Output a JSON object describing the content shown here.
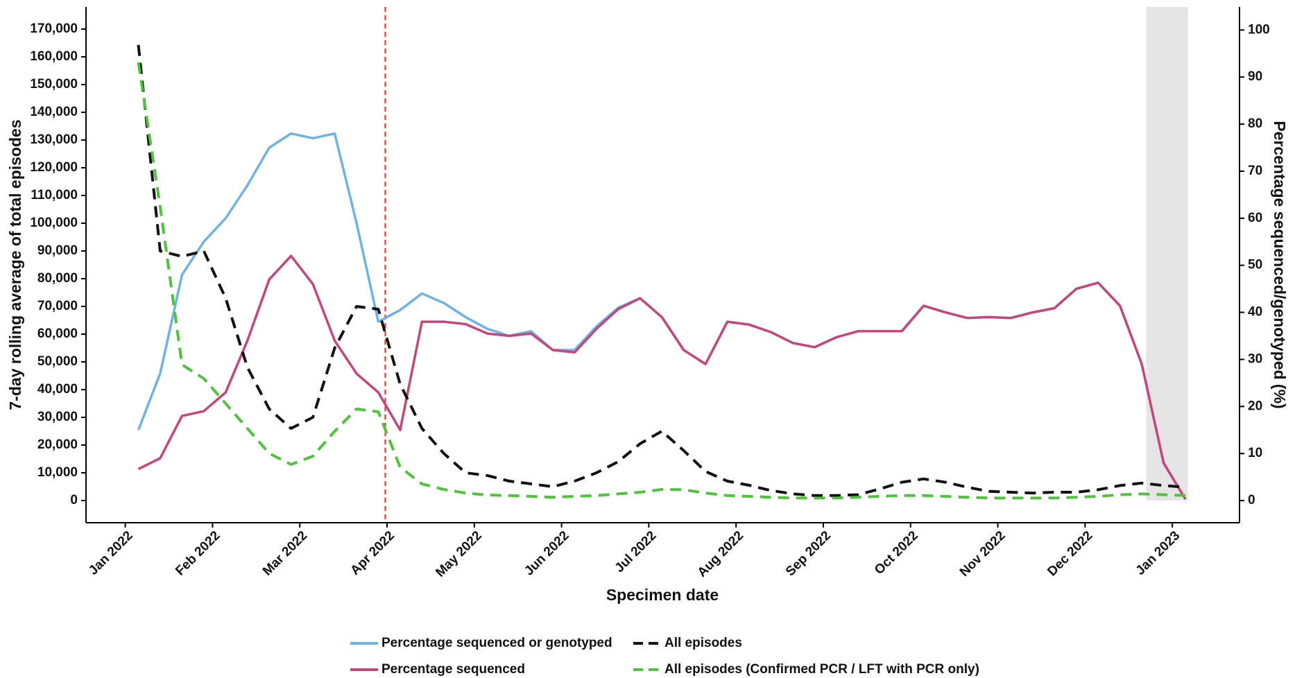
{
  "chart_data": {
    "type": "line",
    "x_label": "Specimen date",
    "y_label": "7-day rolling average of total episodes",
    "y2_label": "Percentage sequenced/genotyped (%)",
    "x": [
      0.15,
      0.4,
      0.65,
      0.9,
      1.15,
      1.4,
      1.65,
      1.9,
      2.15,
      2.4,
      2.65,
      2.9,
      3.15,
      3.4,
      3.65,
      3.9,
      4.15,
      4.4,
      4.65,
      4.9,
      5.15,
      5.4,
      5.65,
      5.9,
      6.15,
      6.4,
      6.65,
      6.9,
      7.15,
      7.4,
      7.65,
      7.9,
      8.15,
      8.4,
      8.65,
      8.9,
      9.15,
      9.4,
      9.65,
      9.9,
      10.15,
      10.4,
      10.65,
      10.9,
      11.15,
      11.4,
      11.65,
      11.9,
      12.15
    ],
    "series": [
      {
        "name": "Percentage sequenced or genotyped",
        "color": "#6cb4e4",
        "dashed": false,
        "axis": "y2",
        "values": [
          15,
          27,
          48,
          55,
          60,
          67,
          75,
          78,
          77,
          78,
          59,
          38,
          40.5,
          44,
          42,
          39,
          36.5,
          35,
          36,
          32,
          32,
          37,
          41,
          43,
          39,
          32,
          29,
          38,
          37.4,
          35.8,
          33.5,
          32.6,
          34.7,
          36,
          36,
          36,
          41.4,
          40,
          38.8,
          39,
          38.8,
          40,
          40.9,
          45,
          46.3,
          41.4,
          29,
          8,
          0.3
        ]
      },
      {
        "name": "Percentage sequenced",
        "color": "#c8457a",
        "dashed": false,
        "axis": "y2",
        "values": [
          6.7,
          9,
          18,
          19,
          23,
          34,
          47,
          52,
          46,
          34,
          27,
          23,
          15,
          38,
          38,
          37.5,
          35.5,
          35,
          35.5,
          32,
          31.5,
          36.5,
          40.7,
          43,
          39,
          32,
          29,
          38,
          37.4,
          35.8,
          33.5,
          32.6,
          34.7,
          36,
          36,
          36,
          41.4,
          40,
          38.8,
          39,
          38.8,
          40,
          40.9,
          45,
          46.3,
          41.4,
          29,
          8,
          0.3
        ]
      },
      {
        "name": "All episodes",
        "color": "#111111",
        "dashed": true,
        "axis": "y",
        "values": [
          164300,
          90000,
          88000,
          90000,
          73000,
          48000,
          33000,
          26000,
          30000,
          55000,
          70000,
          69000,
          42000,
          26000,
          17000,
          10000,
          9000,
          7000,
          6000,
          5000,
          7000,
          10000,
          14000,
          20500,
          25000,
          18000,
          10500,
          7000,
          5500,
          3600,
          2400,
          1800,
          1800,
          2100,
          4200,
          6600,
          7800,
          6600,
          4800,
          3300,
          3000,
          2700,
          3000,
          3000,
          3900,
          5400,
          6300,
          5400,
          4800
        ]
      },
      {
        "name": "All episodes (Confirmed PCR / LFT with PCR only)",
        "color": "#4dc43a",
        "dashed": true,
        "axis": "y",
        "values": [
          158000,
          106000,
          49000,
          44000,
          35000,
          26000,
          17000,
          13000,
          16000,
          25000,
          33000,
          32000,
          12000,
          6000,
          4000,
          2700,
          2000,
          1800,
          1500,
          1200,
          1500,
          1800,
          2400,
          3000,
          4000,
          3900,
          2700,
          1800,
          1500,
          1200,
          900,
          900,
          900,
          1200,
          1500,
          1800,
          1800,
          1500,
          1200,
          900,
          900,
          900,
          900,
          1200,
          1500,
          2100,
          2400,
          2100,
          1800
        ]
      }
    ],
    "xlim": [
      -0.45,
      12.77
    ],
    "xticks": [
      {
        "value": 0,
        "label": "Jan 2022"
      },
      {
        "value": 1,
        "label": "Feb 2022"
      },
      {
        "value": 2,
        "label": "Mar 2022"
      },
      {
        "value": 3,
        "label": "Apr 2022"
      },
      {
        "value": 4,
        "label": "May 2022"
      },
      {
        "value": 5,
        "label": "Jun 2022"
      },
      {
        "value": 6,
        "label": "Jul 2022"
      },
      {
        "value": 7,
        "label": "Aug 2022"
      },
      {
        "value": 8,
        "label": "Sep 2022"
      },
      {
        "value": 9,
        "label": "Oct 2022"
      },
      {
        "value": 10,
        "label": "Nov 2022"
      },
      {
        "value": 11,
        "label": "Dec 2022"
      },
      {
        "value": 12,
        "label": "Jan 2023"
      }
    ],
    "ylim": [
      -8000,
      178000
    ],
    "yticks": [
      0,
      {
        "value": 10000,
        "label": "10,000"
      },
      {
        "value": 20000,
        "label": "20,000"
      },
      {
        "value": 30000,
        "label": "30,000"
      },
      {
        "value": 40000,
        "label": "40,000"
      },
      {
        "value": 50000,
        "label": "50,000"
      },
      {
        "value": 60000,
        "label": "60,000"
      },
      {
        "value": 70000,
        "label": "70,000"
      },
      {
        "value": 80000,
        "label": "80,000"
      },
      {
        "value": 90000,
        "label": "90,000"
      },
      {
        "value": 100000,
        "label": "100,000"
      },
      {
        "value": 110000,
        "label": "110,000"
      },
      {
        "value": 120000,
        "label": "120,000"
      },
      {
        "value": 130000,
        "label": "130,000"
      },
      {
        "value": 140000,
        "label": "140,000"
      },
      {
        "value": 150000,
        "label": "150,000"
      },
      {
        "value": 160000,
        "label": "160,000"
      },
      {
        "value": 170000,
        "label": "170,000"
      }
    ],
    "y2lim": [
      -4.7,
      104.9
    ],
    "y2ticks": [
      0,
      10,
      20,
      30,
      40,
      50,
      60,
      70,
      80,
      90,
      100
    ],
    "vline": 2.98,
    "vline_color": "#ee2222",
    "shaded_region": [
      11.7,
      12.18
    ],
    "shaded_color": "#e5e5e5",
    "legend": "bottom",
    "grid": false
  }
}
